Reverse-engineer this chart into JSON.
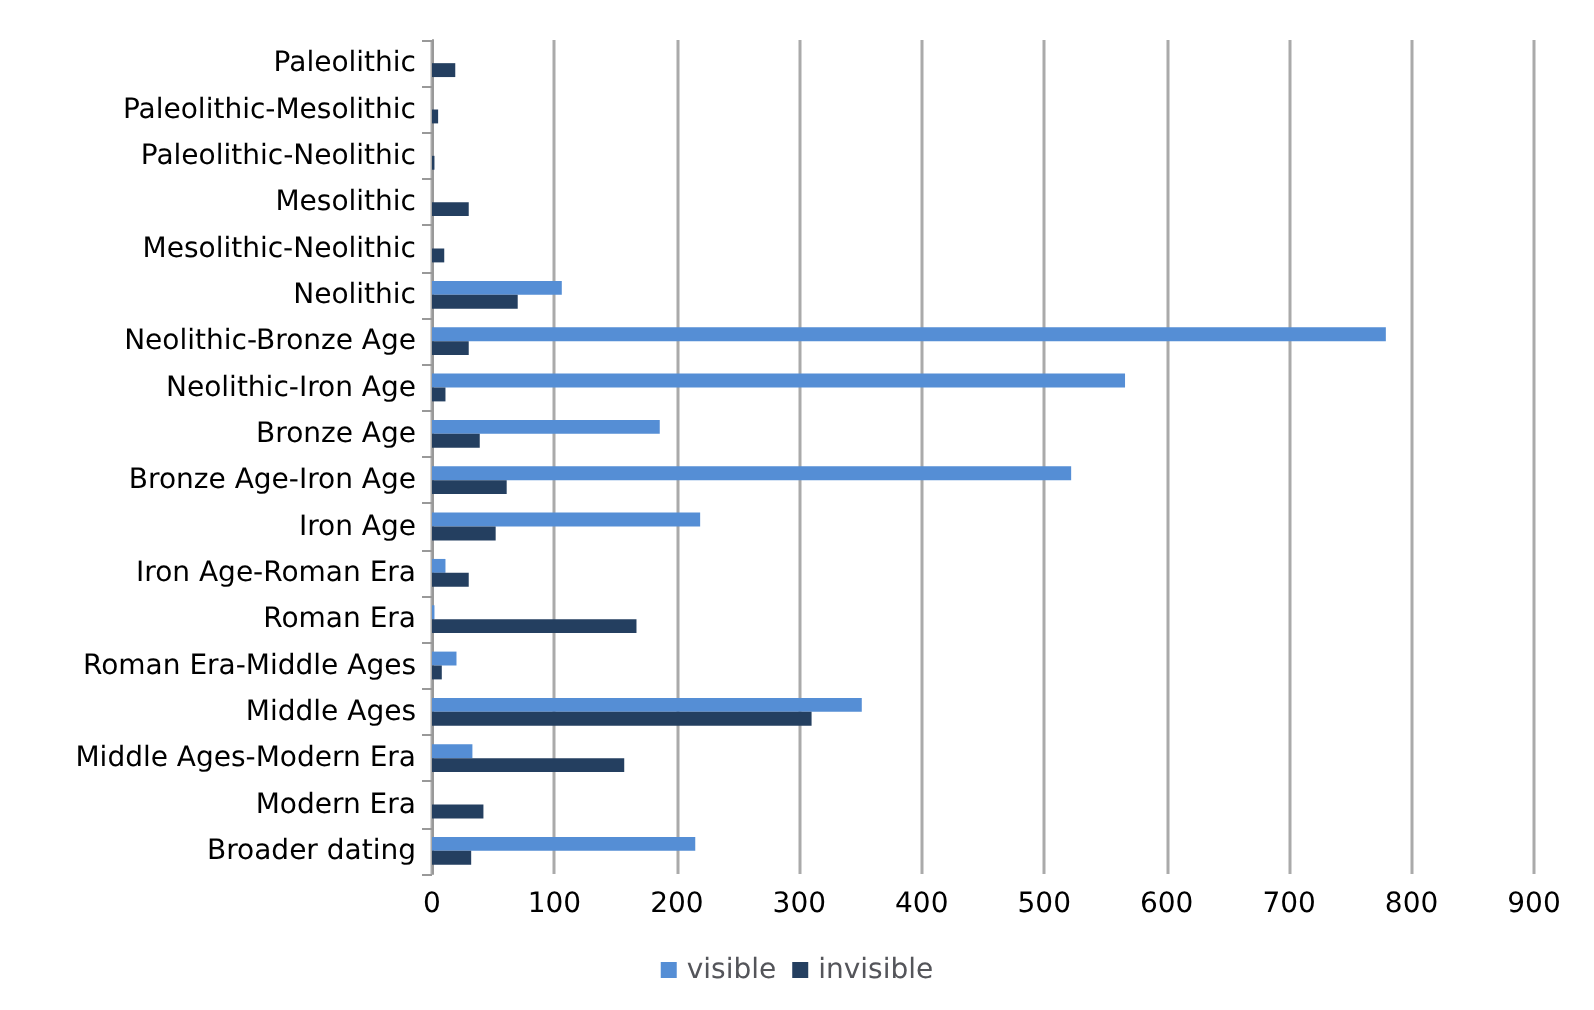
{
  "chart_data": {
    "type": "bar",
    "orientation": "horizontal",
    "categories": [
      "Paleolithic",
      "Paleolithic-Mesolithic",
      "Paleolithic-Neolithic",
      "Mesolithic",
      "Mesolithic-Neolithic",
      "Neolithic",
      "Neolithic-Bronze Age",
      "Neolithic-Iron Age",
      "Bronze Age",
      "Bronze Age-Iron Age",
      "Iron Age",
      "Iron Age-Roman Era",
      "Roman Era",
      "Roman Era-Middle Ages",
      "Middle Ages",
      "Middle Ages-Modern Era",
      "Modern Era",
      "Broader dating"
    ],
    "series": [
      {
        "name": "visible",
        "color": "#558ed5",
        "values": [
          0,
          0,
          0,
          0,
          0,
          106,
          779,
          566,
          186,
          522,
          219,
          11,
          2,
          20,
          351,
          33,
          0,
          215
        ]
      },
      {
        "name": "invisible",
        "color": "#243f60",
        "values": [
          19,
          5,
          2,
          30,
          10,
          70,
          30,
          11,
          39,
          61,
          52,
          30,
          167,
          8,
          310,
          157,
          42,
          32
        ]
      }
    ],
    "xlim": [
      0,
      900
    ],
    "xticks": [
      0,
      100,
      200,
      300,
      400,
      500,
      600,
      700,
      800,
      900
    ],
    "grid": "x",
    "legend": "bottom"
  }
}
